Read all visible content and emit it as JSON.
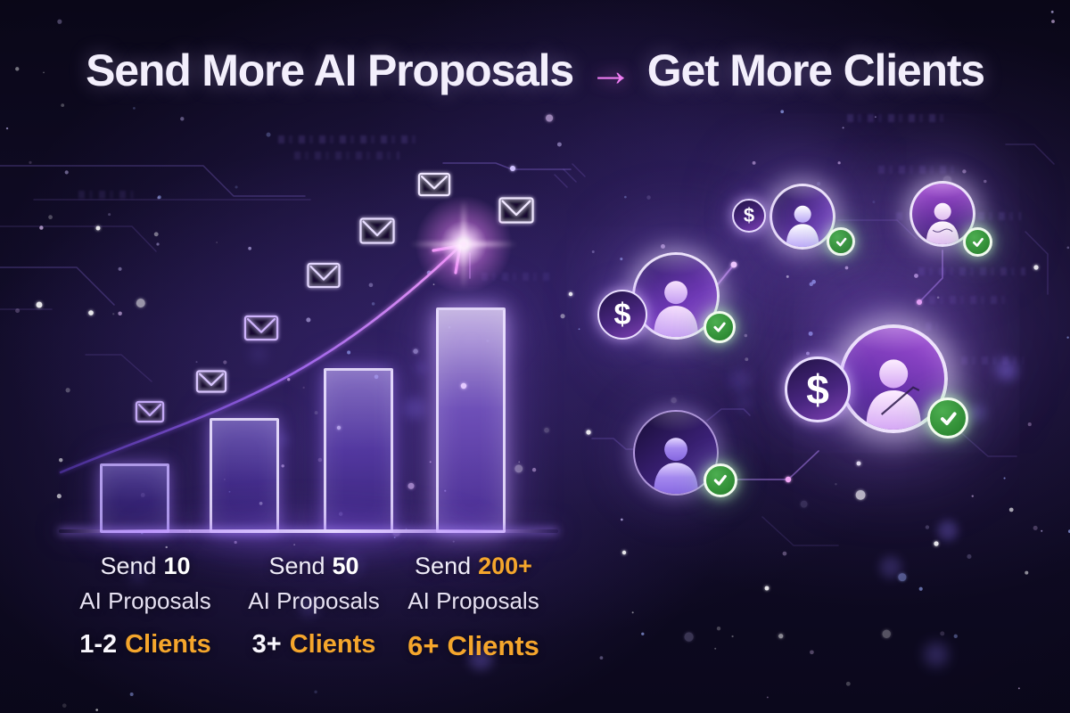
{
  "header": {
    "title_left": "Send More AI Proposals",
    "arrow_glyph": "→",
    "title_right": "Get More Clients"
  },
  "icons": {
    "dollar_glyph": "$",
    "check_icon": "green circle with white checkmark",
    "envelope_icon": "neon outlined email envelope",
    "person_icon": "user silhouette in glowing circle",
    "growth_arrow_icon": "rising curve arrow"
  },
  "stats": {
    "columns": [
      {
        "prefix": "Send",
        "amount": "10",
        "line2": "AI Proposals",
        "clients_value": "1-2",
        "clients_label": "Clients",
        "amount_emphasis": "white"
      },
      {
        "prefix": "Send",
        "amount": "50",
        "line2": "AI Proposals",
        "clients_value": "3+",
        "clients_label": "Clients",
        "amount_emphasis": "white"
      },
      {
        "prefix": "Send",
        "amount": "200+",
        "line2": "AI Proposals",
        "clients_value": "6+",
        "clients_label": "Clients",
        "amount_emphasis": "orange"
      }
    ]
  },
  "chart_data": {
    "type": "bar",
    "title": "Send More AI Proposals → Get More Clients",
    "description": "Decorative neon growth chart: sending more AI proposals yields more clients",
    "categories": [
      "Send 10 AI Proposals",
      "Send 50 AI Proposals",
      "Send 200+ AI Proposals"
    ],
    "series": [
      {
        "name": "Clients won",
        "values": [
          "1-2",
          "3+",
          "6+"
        ]
      }
    ],
    "bars_relative_heights": [
      0.31,
      0.51,
      0.73,
      1.0
    ],
    "xlabel": "",
    "ylabel": "",
    "legend": false,
    "gridlines": false,
    "annotations": [
      "7 envelope icons rising along a growth arrow",
      "5 client avatars with dollar and check badges"
    ]
  },
  "colors": {
    "background": "#0B0720",
    "title_text": "#F3EFFC",
    "accent_orange": "#F5A62C",
    "accent_pink_arrow": "#EE7DF2",
    "neon_lavender": "#E4D6FF",
    "bar_purple": "#7C4DD8",
    "check_green": "#2E8B33",
    "avatar_magenta": "#A04AD0"
  }
}
